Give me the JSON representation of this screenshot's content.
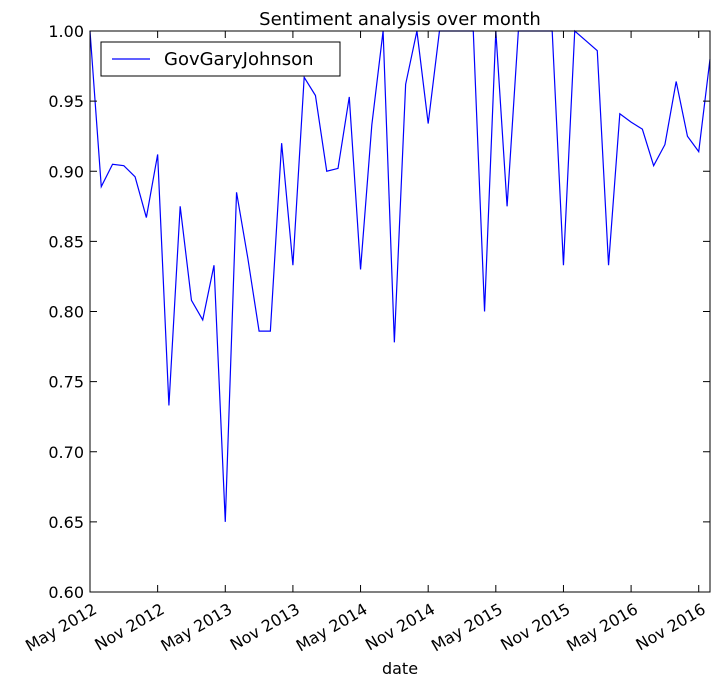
{
  "chart_data": {
    "type": "line",
    "title": "Sentiment analysis over month",
    "xlabel": "date",
    "ylabel": "",
    "ylim": [
      0.6,
      1.0
    ],
    "xlim": [
      "2012-05",
      "2016-12"
    ],
    "y_ticks": [
      "0.60",
      "0.65",
      "0.70",
      "0.75",
      "0.80",
      "0.85",
      "0.90",
      "0.95",
      "1.00"
    ],
    "x_ticks": [
      {
        "date": "2012-05",
        "label": "May 2012"
      },
      {
        "date": "2012-11",
        "label": "Nov 2012"
      },
      {
        "date": "2013-05",
        "label": "May 2013"
      },
      {
        "date": "2013-11",
        "label": "Nov 2013"
      },
      {
        "date": "2014-05",
        "label": "May 2014"
      },
      {
        "date": "2014-11",
        "label": "Nov 2014"
      },
      {
        "date": "2015-05",
        "label": "May 2015"
      },
      {
        "date": "2015-11",
        "label": "Nov 2015"
      },
      {
        "date": "2016-05",
        "label": "May 2016"
      },
      {
        "date": "2016-11",
        "label": "Nov 2016"
      }
    ],
    "legend_position": "top-left",
    "grid": false,
    "series": [
      {
        "name": "GovGaryJohnson",
        "color": "#0000ff",
        "x": [
          "2012-05",
          "2012-06",
          "2012-07",
          "2012-08",
          "2012-09",
          "2012-10",
          "2012-11",
          "2012-12",
          "2013-01",
          "2013-02",
          "2013-03",
          "2013-04",
          "2013-05",
          "2013-06",
          "2013-07",
          "2013-08",
          "2013-09",
          "2013-10",
          "2013-11",
          "2013-12",
          "2014-01",
          "2014-02",
          "2014-03",
          "2014-04",
          "2014-05",
          "2014-06",
          "2014-07",
          "2014-08",
          "2014-09",
          "2014-10",
          "2014-11",
          "2014-12",
          "2015-01",
          "2015-02",
          "2015-03",
          "2015-04",
          "2015-05",
          "2015-06",
          "2015-07",
          "2015-08",
          "2015-09",
          "2015-10",
          "2015-11",
          "2015-12",
          "2016-01",
          "2016-02",
          "2016-03",
          "2016-04",
          "2016-05",
          "2016-06",
          "2016-07",
          "2016-08",
          "2016-09",
          "2016-10",
          "2016-11",
          "2016-12"
        ],
        "y": [
          1.0,
          0.889,
          0.905,
          0.904,
          0.896,
          0.867,
          0.912,
          0.733,
          0.875,
          0.808,
          0.794,
          0.833,
          0.65,
          0.885,
          0.838,
          0.786,
          0.786,
          0.92,
          0.833,
          0.967,
          0.954,
          0.9,
          0.902,
          0.953,
          0.83,
          0.933,
          1.0,
          0.778,
          0.962,
          1.0,
          0.934,
          1.0,
          1.0,
          1.0,
          1.0,
          0.8,
          1.0,
          0.875,
          1.0,
          1.0,
          1.0,
          1.0,
          0.833,
          1.0,
          0.993,
          0.986,
          0.833,
          0.941,
          0.935,
          0.93,
          0.904,
          0.919,
          0.964,
          0.925,
          0.914,
          0.98
        ]
      }
    ]
  }
}
